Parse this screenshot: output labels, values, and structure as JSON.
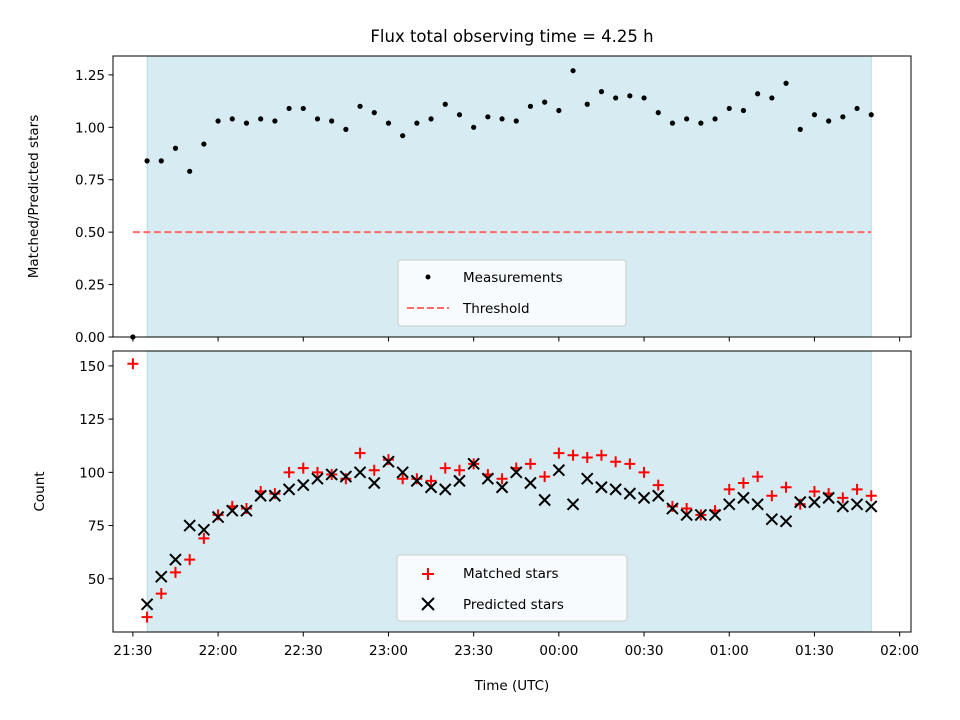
{
  "chart_data": [
    {
      "type": "scatter",
      "title": "Flux total observing time = 4.25 h",
      "xlabel": "",
      "ylabel": "Matched/Predicted stars",
      "xlim": [
        "21:23",
        "02:04"
      ],
      "ylim": [
        0,
        1.34
      ],
      "yticks": [
        0.0,
        0.25,
        0.5,
        0.75,
        1.0,
        1.25
      ],
      "ytick_labels": [
        "0.00",
        "0.25",
        "0.50",
        "0.75",
        "1.00",
        "1.25"
      ],
      "shaded_span": [
        "21:35",
        "01:50"
      ],
      "shade_color": "#add8e6",
      "legend": {
        "placement": "lower-center",
        "entries": [
          "Measurements",
          "Threshold"
        ]
      },
      "series": [
        {
          "name": "Measurements",
          "marker": "dot",
          "color": "#000000",
          "x": [
            "21:30",
            "21:35",
            "21:40",
            "21:45",
            "21:50",
            "21:55",
            "22:00",
            "22:05",
            "22:10",
            "22:15",
            "22:20",
            "22:25",
            "22:30",
            "22:35",
            "22:40",
            "22:45",
            "22:50",
            "22:55",
            "23:00",
            "23:05",
            "23:10",
            "23:15",
            "23:20",
            "23:25",
            "23:30",
            "23:35",
            "23:40",
            "23:45",
            "23:50",
            "23:55",
            "00:00",
            "00:05",
            "00:10",
            "00:15",
            "00:20",
            "00:25",
            "00:30",
            "00:35",
            "00:40",
            "00:45",
            "00:50",
            "00:55",
            "01:00",
            "01:05",
            "01:10",
            "01:15",
            "01:20",
            "01:25",
            "01:30",
            "01:35",
            "01:40",
            "01:45",
            "01:50"
          ],
          "y": [
            0.0,
            0.84,
            0.84,
            0.9,
            0.79,
            0.92,
            1.03,
            1.04,
            1.02,
            1.04,
            1.03,
            1.09,
            1.09,
            1.04,
            1.03,
            0.99,
            1.1,
            1.07,
            1.02,
            0.96,
            1.02,
            1.04,
            1.11,
            1.06,
            1.0,
            1.05,
            1.04,
            1.03,
            1.1,
            1.12,
            1.08,
            1.27,
            1.11,
            1.17,
            1.14,
            1.15,
            1.14,
            1.07,
            1.02,
            1.04,
            1.02,
            1.04,
            1.09,
            1.08,
            1.16,
            1.14,
            1.21,
            0.99,
            1.06,
            1.03,
            1.05,
            1.09,
            1.06
          ]
        },
        {
          "name": "Threshold",
          "style": "dashed",
          "color": "#ff6b6b",
          "x": [
            "21:30",
            "01:50"
          ],
          "y": [
            0.5,
            0.5
          ]
        }
      ]
    },
    {
      "type": "scatter",
      "title": "",
      "xlabel": "Time (UTC)",
      "ylabel": "Count",
      "xlim": [
        "21:23",
        "02:04"
      ],
      "ylim": [
        25,
        157
      ],
      "yticks": [
        50,
        75,
        100,
        125,
        150
      ],
      "ytick_labels": [
        "50",
        "75",
        "100",
        "125",
        "150"
      ],
      "xticks": [
        "21:30",
        "22:00",
        "22:30",
        "23:00",
        "23:30",
        "00:00",
        "00:30",
        "01:00",
        "01:30",
        "02:00"
      ],
      "xtick_labels": [
        "21:30",
        "22:00",
        "22:30",
        "23:00",
        "23:30",
        "00:00",
        "00:30",
        "01:00",
        "01:30",
        "02:00"
      ],
      "shaded_span": [
        "21:35",
        "01:50"
      ],
      "shade_color": "#add8e6",
      "legend": {
        "placement": "lower-center",
        "entries": [
          "Matched stars",
          "Predicted stars"
        ]
      },
      "series": [
        {
          "name": "Matched stars",
          "marker": "plus",
          "color": "#ff0000",
          "x": [
            "21:30",
            "21:35",
            "21:40",
            "21:45",
            "21:50",
            "21:55",
            "22:00",
            "22:05",
            "22:10",
            "22:15",
            "22:20",
            "22:25",
            "22:30",
            "22:35",
            "22:40",
            "22:45",
            "22:50",
            "22:55",
            "23:00",
            "23:05",
            "23:10",
            "23:15",
            "23:20",
            "23:25",
            "23:30",
            "23:35",
            "23:40",
            "23:45",
            "23:50",
            "23:55",
            "00:00",
            "00:05",
            "00:10",
            "00:15",
            "00:20",
            "00:25",
            "00:30",
            "00:35",
            "00:40",
            "00:45",
            "00:50",
            "00:55",
            "01:00",
            "01:05",
            "01:10",
            "01:15",
            "01:20",
            "01:25",
            "01:30",
            "01:35",
            "01:40",
            "01:45",
            "01:50"
          ],
          "y": [
            151,
            32,
            43,
            53,
            59,
            69,
            80,
            84,
            83,
            91,
            90,
            100,
            102,
            100,
            99,
            97,
            109,
            101,
            106,
            97,
            97,
            96,
            102,
            101,
            104,
            99,
            97,
            102,
            104,
            98,
            109,
            108,
            107,
            108,
            105,
            104,
            100,
            94,
            84,
            83,
            80,
            82,
            92,
            95,
            98,
            89,
            93,
            85,
            91,
            90,
            88,
            92,
            89
          ]
        },
        {
          "name": "Predicted stars",
          "marker": "x",
          "color": "#000000",
          "x": [
            "21:35",
            "21:40",
            "21:45",
            "21:50",
            "21:55",
            "22:00",
            "22:05",
            "22:10",
            "22:15",
            "22:20",
            "22:25",
            "22:30",
            "22:35",
            "22:40",
            "22:45",
            "22:50",
            "22:55",
            "23:00",
            "23:05",
            "23:10",
            "23:15",
            "23:20",
            "23:25",
            "23:30",
            "23:35",
            "23:40",
            "23:45",
            "23:50",
            "23:55",
            "00:00",
            "00:05",
            "00:10",
            "00:15",
            "00:20",
            "00:25",
            "00:30",
            "00:35",
            "00:40",
            "00:45",
            "00:50",
            "00:55",
            "01:00",
            "01:05",
            "01:10",
            "01:15",
            "01:20",
            "01:25",
            "01:30",
            "01:35",
            "01:40",
            "01:45",
            "01:50"
          ],
          "y": [
            38,
            51,
            59,
            75,
            73,
            79,
            82,
            82,
            89,
            89,
            92,
            94,
            97,
            99,
            98,
            100,
            95,
            105,
            100,
            96,
            93,
            92,
            96,
            104,
            97,
            93,
            100,
            95,
            87,
            101,
            85,
            97,
            93,
            92,
            90,
            88,
            89,
            83,
            80,
            80,
            80,
            85,
            88,
            85,
            78,
            77,
            86,
            86,
            88,
            84,
            85,
            84
          ]
        }
      ]
    }
  ]
}
